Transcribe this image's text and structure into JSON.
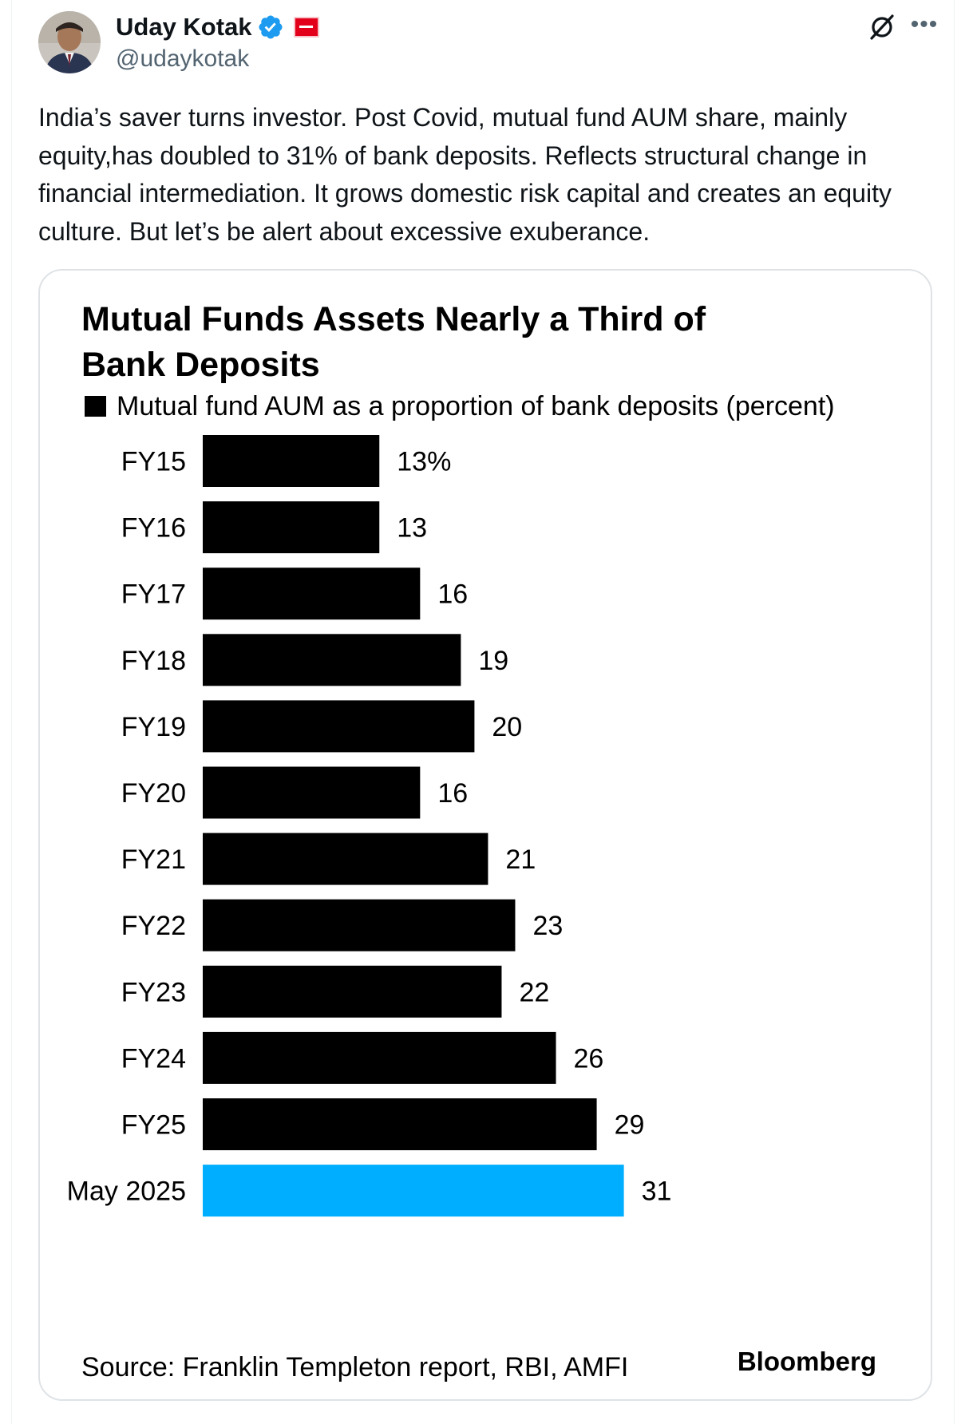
{
  "tweet": {
    "author": {
      "name": "Uday Kotak",
      "handle": "@udaykotak",
      "verified": true
    },
    "text": "India’s saver turns investor. Post Covid, mutual fund AUM share, mainly equity,has doubled to 31% of bank deposits. Reflects structural change in financial intermediation. It grows domestic risk capital and creates an equity culture. But let’s be alert about excessive exuberance.",
    "icons": [
      "verified-badge-icon",
      "affiliate-badge-icon",
      "grok-icon",
      "more-icon"
    ]
  },
  "chart_data": {
    "type": "bar",
    "orientation": "horizontal",
    "title": "Mutual Funds Assets Nearly a Third of Bank Deposits",
    "legend": [
      {
        "label": "Mutual fund AUM as a proportion of bank deposits (percent)",
        "color": "#000000"
      }
    ],
    "categories": [
      "FY15",
      "FY16",
      "FY17",
      "FY18",
      "FY19",
      "FY20",
      "FY21",
      "FY22",
      "FY23",
      "FY24",
      "FY25",
      "May 2025"
    ],
    "values": [
      13,
      13,
      16,
      19,
      20,
      16,
      21,
      23,
      22,
      26,
      29,
      31
    ],
    "value_labels": [
      "13%",
      "13",
      "16",
      "19",
      "20",
      "16",
      "21",
      "23",
      "22",
      "26",
      "29",
      "31"
    ],
    "bar_colors": [
      "#000000",
      "#000000",
      "#000000",
      "#000000",
      "#000000",
      "#000000",
      "#000000",
      "#000000",
      "#000000",
      "#000000",
      "#000000",
      "#00aeff"
    ],
    "source": "Source: Franklin Templeton report, RBI, AMFI",
    "brand": "Bloomberg",
    "xlim": [
      0,
      40
    ],
    "grid": false
  }
}
